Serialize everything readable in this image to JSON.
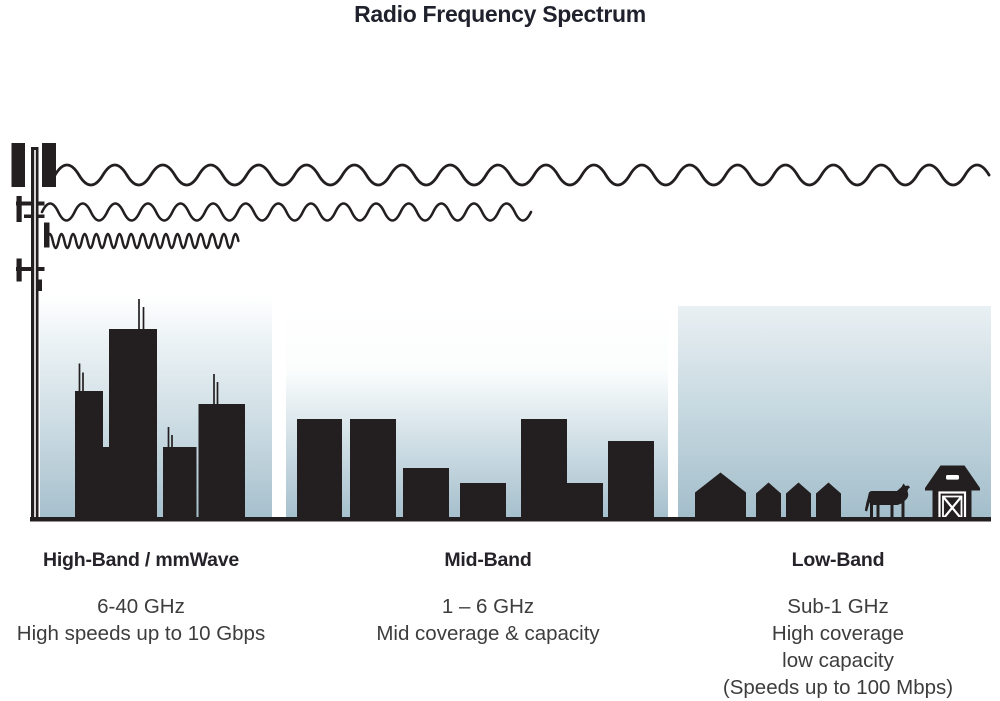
{
  "title": "Radio Frequency Spectrum",
  "colors": {
    "silhouette": "#231f20",
    "sky_top": "#ffffff",
    "sky_bottom": "#a6c0cd",
    "title_text": "#1f222c",
    "body_text": "#3d3d3d",
    "detail_white": "#ffffff"
  },
  "icons": [
    "cell-tower-icon",
    "long-wavelength-wave-icon",
    "medium-wavelength-wave-icon",
    "short-wavelength-wave-icon",
    "city-skyline-icon",
    "midrise-skyline-icon",
    "houses-icon",
    "cow-icon",
    "barn-icon",
    "ground-line"
  ],
  "sections": [
    {
      "id": "high-band",
      "header": "High-Band / mmWave",
      "lines": [
        "6-40 GHz",
        "High speeds up to 10 Gbps"
      ]
    },
    {
      "id": "mid-band",
      "header": "Mid-Band",
      "lines": [
        "1 – 6 GHz",
        "Mid coverage & capacity"
      ]
    },
    {
      "id": "low-band",
      "header": "Low-Band",
      "lines": [
        "Sub-1 GHz",
        "High coverage",
        "low capacity",
        "(Speeds up to 100 Mbps)"
      ]
    }
  ]
}
